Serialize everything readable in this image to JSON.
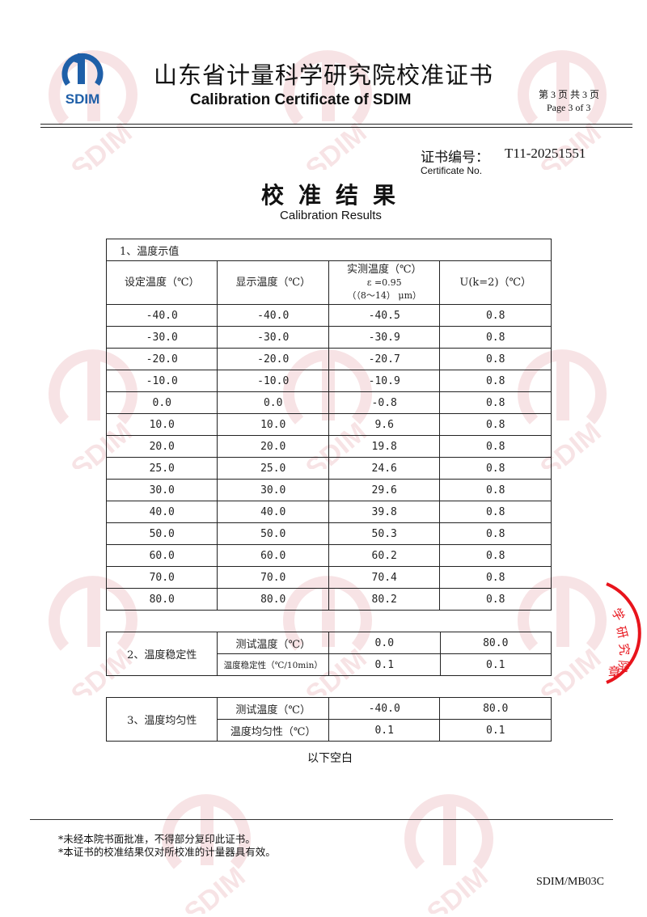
{
  "header": {
    "logo_text": "SDIM",
    "title_cn": "山东省计量科学研究院校准证书",
    "title_en": "Calibration Certificate of SDIM",
    "page_cn": "第 3 页 共 3 页",
    "page_en": "Page 3 of 3"
  },
  "certificate": {
    "label_cn": "证书编号：",
    "number": "T11-20251551",
    "label_en": "Certificate No."
  },
  "results": {
    "title_cn": "校准结果",
    "title_en": "Calibration Results"
  },
  "table1": {
    "section": "1、温度示值",
    "headers": [
      "设定温度（℃）",
      "显示温度（℃）",
      "实测温度（℃）",
      "U(k=2)（℃）"
    ],
    "header_sub": [
      "ε =0.95",
      "（（8～14） μm）"
    ],
    "rows": [
      [
        "-40.0",
        "-40.0",
        "-40.5",
        "0.8"
      ],
      [
        "-30.0",
        "-30.0",
        "-30.9",
        "0.8"
      ],
      [
        "-20.0",
        "-20.0",
        "-20.7",
        "0.8"
      ],
      [
        "-10.0",
        "-10.0",
        "-10.9",
        "0.8"
      ],
      [
        "0.0",
        "0.0",
        "-0.8",
        "0.8"
      ],
      [
        "10.0",
        "10.0",
        "9.6",
        "0.8"
      ],
      [
        "20.0",
        "20.0",
        "19.8",
        "0.8"
      ],
      [
        "25.0",
        "25.0",
        "24.6",
        "0.8"
      ],
      [
        "30.0",
        "30.0",
        "29.6",
        "0.8"
      ],
      [
        "40.0",
        "40.0",
        "39.8",
        "0.8"
      ],
      [
        "50.0",
        "50.0",
        "50.3",
        "0.8"
      ],
      [
        "60.0",
        "60.0",
        "60.2",
        "0.8"
      ],
      [
        "70.0",
        "70.0",
        "70.4",
        "0.8"
      ],
      [
        "80.0",
        "80.0",
        "80.2",
        "0.8"
      ]
    ]
  },
  "table2": {
    "section": "2、温度稳定性",
    "row_labels": [
      "测试温度（℃）",
      "温度稳定性（℃/10min）"
    ],
    "values": [
      [
        "0.0",
        "80.0"
      ],
      [
        "0.1",
        "0.1"
      ]
    ]
  },
  "table3": {
    "section": "3、温度均匀性",
    "row_labels": [
      "测试温度（℃）",
      "温度均匀性（℃）"
    ],
    "values": [
      [
        "-40.0",
        "80.0"
      ],
      [
        "0.1",
        "0.1"
      ]
    ]
  },
  "blank_note": "以下空白",
  "footer": {
    "notes": [
      "*未经本院书面批准，不得部分复印此证书。",
      "*本证书的校准结果仅对所校准的计量器具有效。"
    ],
    "form_code": "SDIM/MB03C"
  },
  "stamp": {
    "text": "学研究院 章",
    "color": "#e8141c"
  },
  "colors": {
    "logo_blue": "#1f5fa8",
    "watermark": "#c8323c"
  }
}
